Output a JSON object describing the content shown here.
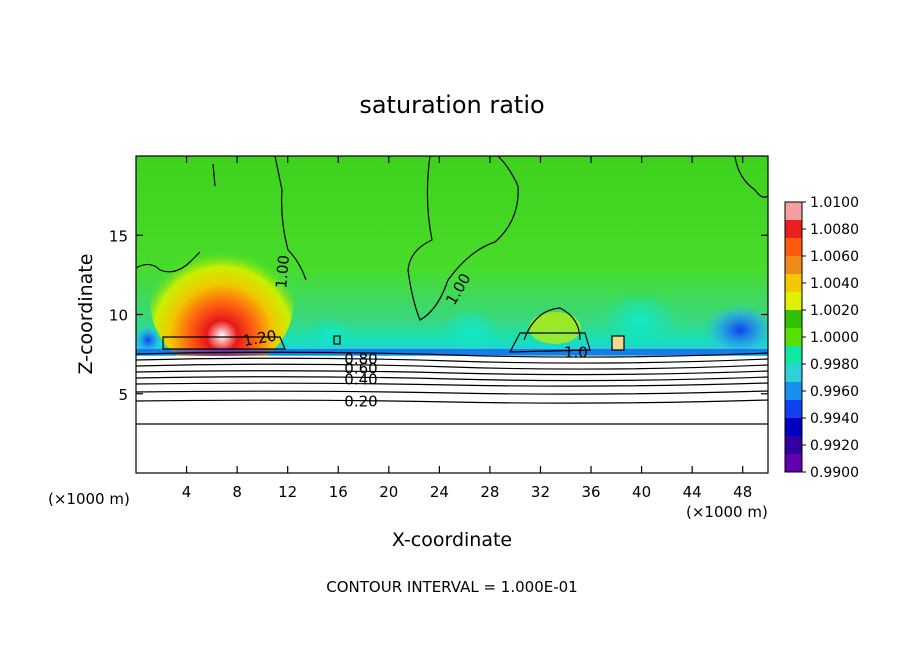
{
  "chart_data": {
    "type": "heatmap",
    "title": "saturation ratio",
    "xlabel": "X-coordinate",
    "ylabel": "Z-coordinate",
    "x_unit": "(×1000 m)",
    "x_unit_right": "(×1000 m)",
    "xlim": [
      0,
      50
    ],
    "ylim": [
      0,
      20
    ],
    "xticks": [
      4,
      8,
      12,
      16,
      20,
      24,
      28,
      32,
      36,
      40,
      44,
      48
    ],
    "yticks": [
      5,
      10,
      15
    ],
    "footer": "CONTOUR INTERVAL = 1.000E-01",
    "colorbar": {
      "ticks": [
        "1.0100",
        "1.0080",
        "1.0060",
        "1.0040",
        "1.0020",
        "1.0000",
        "0.9980",
        "0.9960",
        "0.9940",
        "0.9920",
        "0.9900"
      ],
      "colors": [
        "#f29fa0",
        "#e82020",
        "#ff5a10",
        "#f08a18",
        "#f2c800",
        "#e0f000",
        "#30c000",
        "#58e000",
        "#10e8a0",
        "#30d0d8",
        "#1890f0",
        "#1040f0",
        "#0000c0",
        "#3000a0",
        "#6000b0"
      ]
    },
    "contour_labels": [
      {
        "text": "1.00",
        "x": 11.6,
        "y": 12.7,
        "rotate": -85
      },
      {
        "text": "1.00",
        "x": 25.5,
        "y": 11.6,
        "rotate": -60
      },
      {
        "text": "1.20",
        "x": 9.8,
        "y": 8.5,
        "rotate": -10
      },
      {
        "text": "1.0",
        "x": 34.8,
        "y": 7.6,
        "rotate": 0
      },
      {
        "text": "0.80",
        "x": 17.8,
        "y": 7.2,
        "rotate": 0
      },
      {
        "text": "0.60",
        "x": 17.8,
        "y": 6.6,
        "rotate": 0
      },
      {
        "text": "0.40",
        "x": 17.8,
        "y": 5.9,
        "rotate": 0
      },
      {
        "text": "0.20",
        "x": 17.8,
        "y": 4.5,
        "rotate": 0
      }
    ],
    "grid": false
  }
}
